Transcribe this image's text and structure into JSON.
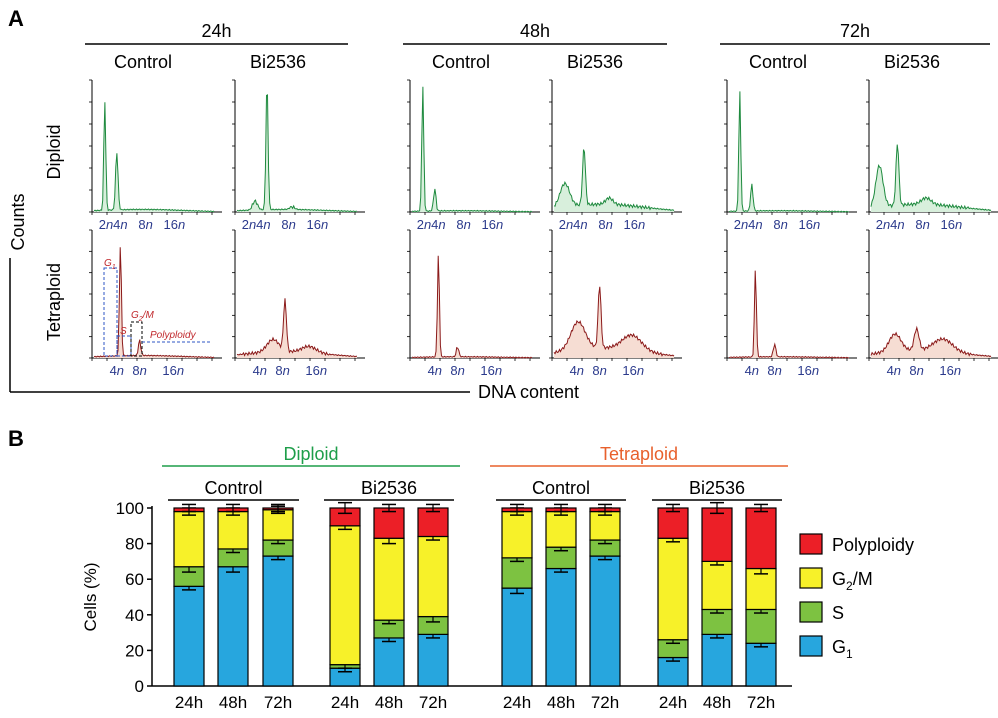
{
  "panel_a": {
    "panel_label": "A",
    "timepoints": [
      "24h",
      "48h",
      "72h"
    ],
    "treatments": [
      "Control",
      "Bi2536"
    ],
    "rows": [
      "Diploid",
      "Tetraploid"
    ],
    "y_axis_label": "Counts",
    "x_axis_label": "DNA content",
    "diploid_ticks": [
      {
        "num": "2",
        "unit": "n"
      },
      {
        "num": "4",
        "unit": "n"
      },
      {
        "num": "8",
        "unit": "n"
      },
      {
        "num": "16",
        "unit": "n"
      }
    ],
    "tetraploid_ticks": [
      {
        "num": "4",
        "unit": "n"
      },
      {
        "num": "8",
        "unit": "n"
      },
      {
        "num": "16",
        "unit": "n"
      }
    ],
    "gate_labels": {
      "g1": "G",
      "g1_sub": "1",
      "s": "S",
      "g2m_pre": "G",
      "g2m_sub": "2",
      "g2m_post": "/M",
      "polyploidy": "Polyploidy"
    },
    "colors": {
      "diploid_line": "#1e8a3e",
      "diploid_fill": "#d8efdc",
      "tetraploid_line": "#8b1a1a",
      "tetraploid_fill": "#f6ddd3",
      "tick_text": "#2b3a8c",
      "gate_box": "#2e56c4",
      "gate_text": "#c0282c"
    }
  },
  "chart_data": {
    "type": "bar",
    "panel_label": "B",
    "stacking": "stacked",
    "ylabel": "Cells (%)",
    "ylim": [
      0,
      100
    ],
    "yticks": [
      "0",
      "20",
      "40",
      "60",
      "80",
      "100"
    ],
    "groups": [
      {
        "name": "Diploid",
        "color": "#1e9e4a",
        "subgroups": [
          {
            "name": "Control",
            "categories": [
              "24h",
              "48h",
              "72h"
            ]
          },
          {
            "name": "Bi2536",
            "categories": [
              "24h",
              "48h",
              "72h"
            ]
          }
        ]
      },
      {
        "name": "Tetraploid",
        "color": "#e8602c",
        "subgroups": [
          {
            "name": "Control",
            "categories": [
              "24h",
              "48h",
              "72h"
            ]
          },
          {
            "name": "Bi2536",
            "categories": [
              "24h",
              "48h",
              "72h"
            ]
          }
        ]
      }
    ],
    "series": [
      {
        "name": "G1",
        "label_base": "G",
        "label_sub": "1",
        "color": "#27a6de",
        "values": [
          56,
          67,
          73,
          10,
          27,
          29,
          55,
          66,
          73,
          16,
          29,
          24
        ]
      },
      {
        "name": "S",
        "label_base": "S",
        "label_sub": "",
        "color": "#7dc241",
        "values": [
          11,
          10,
          9,
          2,
          10,
          10,
          17,
          12,
          9,
          10,
          14,
          19
        ]
      },
      {
        "name": "G2/M",
        "label_base": "G",
        "label_sub": "2",
        "label_post": "/M",
        "color": "#f7f129",
        "values": [
          31,
          21,
          17,
          78,
          46,
          45,
          26,
          20,
          16,
          57,
          27,
          23
        ]
      },
      {
        "name": "Polyploidy",
        "label_base": "Polyploidy",
        "label_sub": "",
        "color": "#ec1f27",
        "values": [
          2,
          2,
          1,
          10,
          17,
          16,
          2,
          2,
          2,
          17,
          30,
          34
        ]
      }
    ]
  }
}
